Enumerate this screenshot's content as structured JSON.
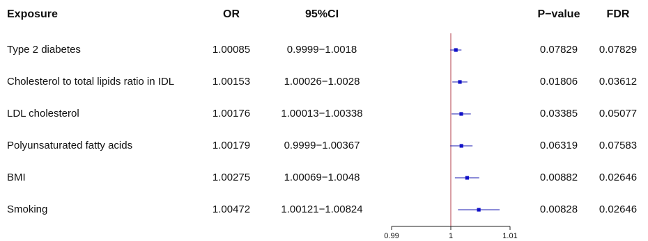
{
  "headers": {
    "exposure": "Exposure",
    "or": "OR",
    "ci": "95%CI",
    "pvalue": "P−value",
    "fdr": "FDR"
  },
  "rows": [
    {
      "exposure": "Type 2 diabetes",
      "or_text": "1.00085",
      "ci_text": "0.9999−1.0018",
      "p_text": "0.07829",
      "fdr_text": "0.07829"
    },
    {
      "exposure": "Cholesterol to total lipids ratio in IDL",
      "or_text": "1.00153",
      "ci_text": "1.00026−1.0028",
      "p_text": "0.01806",
      "fdr_text": "0.03612"
    },
    {
      "exposure": "LDL cholesterol",
      "or_text": "1.00176",
      "ci_text": "1.00013−1.00338",
      "p_text": "0.03385",
      "fdr_text": "0.05077"
    },
    {
      "exposure": "Polyunsaturated fatty acids",
      "or_text": "1.00179",
      "ci_text": "0.9999−1.00367",
      "p_text": "0.06319",
      "fdr_text": "0.07583"
    },
    {
      "exposure": "BMI",
      "or_text": "1.00275",
      "ci_text": "1.00069−1.0048",
      "p_text": "0.00882",
      "fdr_text": "0.02646"
    },
    {
      "exposure": "Smoking",
      "or_text": "1.00472",
      "ci_text": "1.00121−1.00824",
      "p_text": "0.00828",
      "fdr_text": "0.02646"
    }
  ],
  "chart_data": {
    "type": "scatter",
    "subtype": "forest",
    "categories": [
      "Type 2 diabetes",
      "Cholesterol to total lipids ratio in IDL",
      "LDL cholesterol",
      "Polyunsaturated fatty acids",
      "BMI",
      "Smoking"
    ],
    "estimates": [
      1.00085,
      1.00153,
      1.00176,
      1.00179,
      1.00275,
      1.00472
    ],
    "lower": [
      0.9999,
      1.00026,
      1.00013,
      0.9999,
      1.00069,
      1.00121
    ],
    "upper": [
      1.0018,
      1.0028,
      1.00338,
      1.00367,
      1.0048,
      1.00824
    ],
    "xlim": [
      0.99,
      1.01
    ],
    "xticks": [
      0.99,
      1,
      1.01
    ],
    "xtick_labels": [
      "0.99",
      "1",
      "1.01"
    ],
    "reference_line": 1,
    "grid": false,
    "colors": {
      "point": "#1010c8",
      "ci_line": "#1a1ab0",
      "reference": "#c0606a",
      "axis": "#222222"
    }
  }
}
